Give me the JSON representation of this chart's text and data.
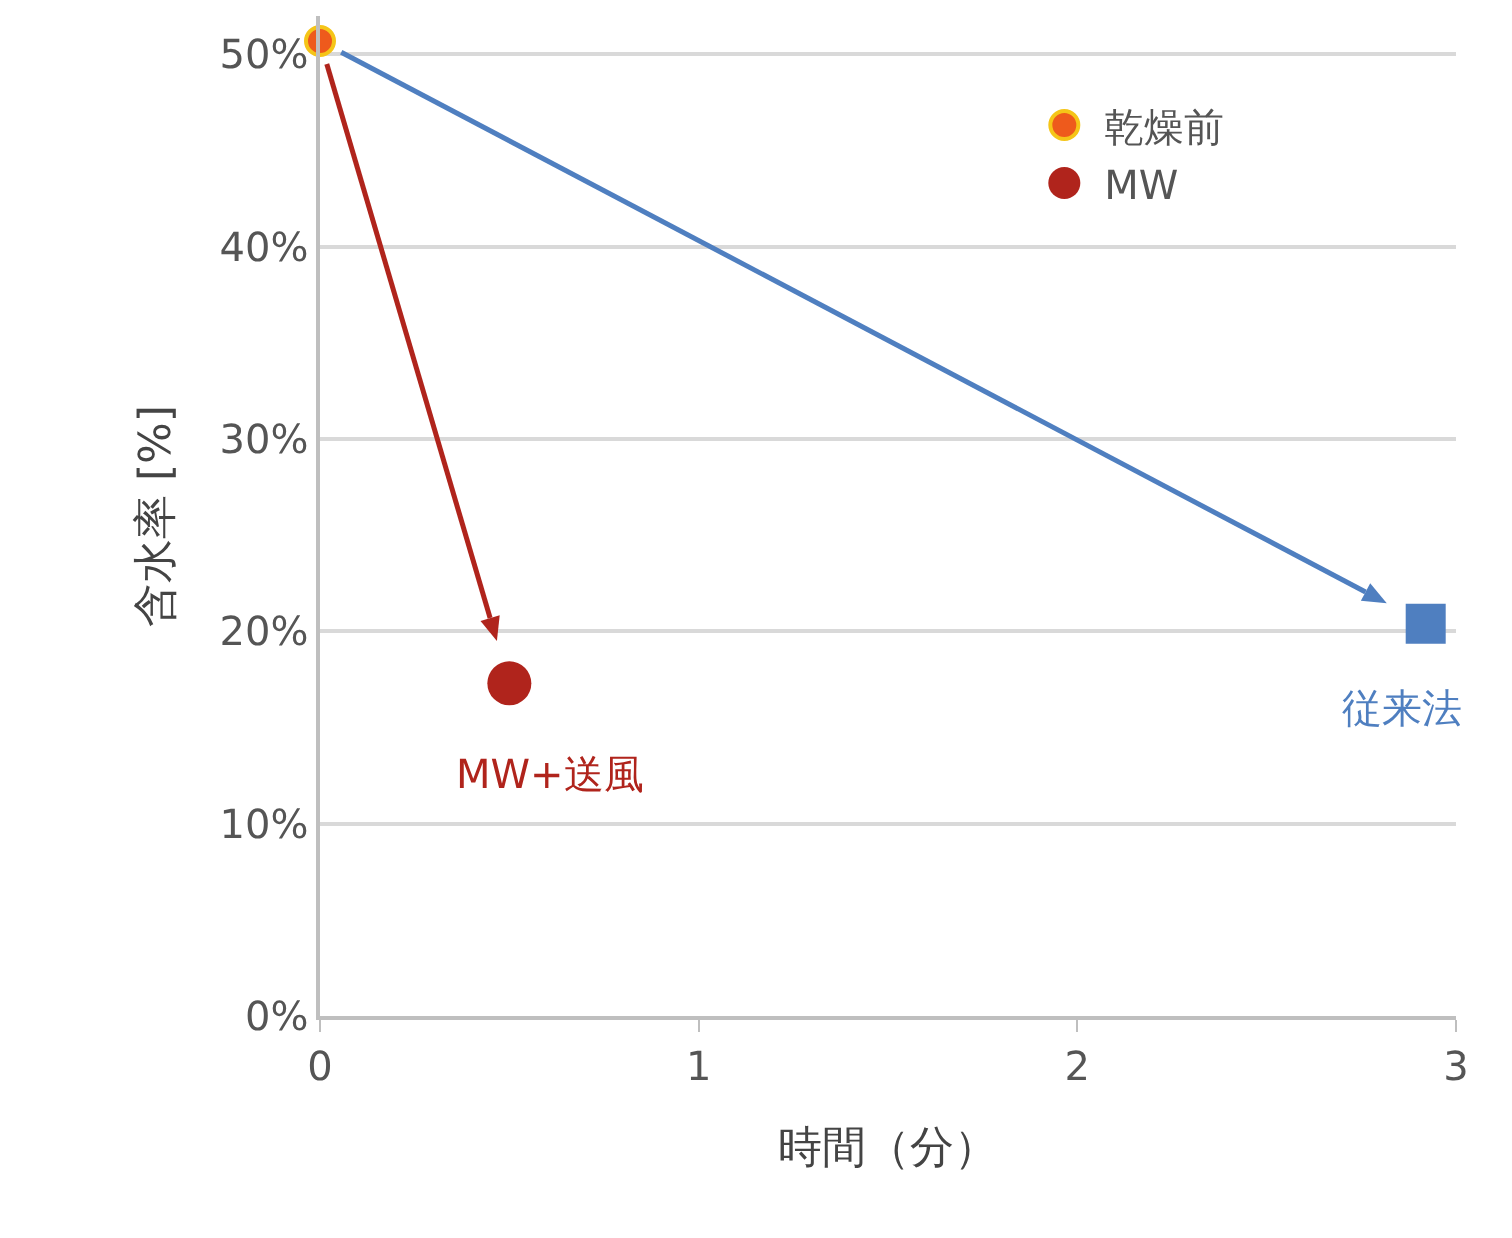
{
  "chart_data": {
    "type": "scatter",
    "xlabel": "時間（分）",
    "ylabel": "含水率 [%]",
    "xlim": [
      0,
      3
    ],
    "xticks": [
      0,
      1,
      2,
      3
    ],
    "ylim": [
      0,
      52
    ],
    "yticks": [
      {
        "value": 0,
        "label": "0%"
      },
      {
        "value": 10,
        "label": "10%"
      },
      {
        "value": 20,
        "label": "20%"
      },
      {
        "value": 30,
        "label": "30%"
      },
      {
        "value": 40,
        "label": "40%"
      },
      {
        "value": 50,
        "label": "50%"
      }
    ],
    "series": [
      {
        "name": "乾燥前",
        "color": "#ee5a1c",
        "x": [
          0
        ],
        "values": [
          50.7
        ],
        "marker": "circle"
      },
      {
        "name": "MW",
        "color": "#b0241c",
        "x": [
          0.5
        ],
        "values": [
          17.3
        ],
        "marker": "circle"
      },
      {
        "name": "従来法",
        "color": "#4f7fc0",
        "x": [
          2.92
        ],
        "values": [
          20.4
        ],
        "marker": "square"
      }
    ],
    "annotations": [
      {
        "text": "MW+送風",
        "x": 0.5,
        "y": 17.3
      }
    ],
    "grid": "y",
    "legend": "top right"
  }
}
